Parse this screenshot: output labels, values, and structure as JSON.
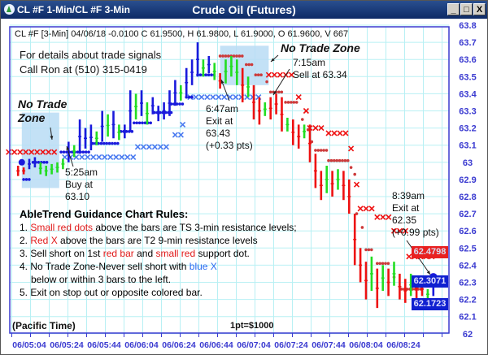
{
  "window": {
    "app_title": "CL #F 1-Min/CL #F 3-Min",
    "title": "Crude Oil (Futures)",
    "buttons": [
      "_",
      "□",
      "X"
    ]
  },
  "header": "CL #F [3-Min] 04/06/18  -0.0100 C 61.9500, H 61.9800, L 61.9000, O 61.9600, V 667",
  "contact": [
    "For details about trade signals",
    "Call Ron at (510) 315-0419"
  ],
  "annotations": {
    "nz_left": [
      "No Trade",
      "Zone"
    ],
    "buy": [
      "5:25am",
      "Buy at",
      "63.10"
    ],
    "exit1": [
      "6:47am",
      "Exit at",
      "63.43",
      "(+0.33 pts)"
    ],
    "nz_top": "No Trade Zone",
    "sell": [
      "7:15am",
      "Sell at 63.34"
    ],
    "exit2": [
      "8:39am",
      "Exit at",
      "62.35",
      "(+0.99 pts)"
    ]
  },
  "rules": {
    "title": "AbleTrend Guidance Chart Rules:",
    "r1": {
      "a": "1. ",
      "b": "Small red dots",
      "c": " above the bars are TS 3-min resistance levels;"
    },
    "r2": {
      "a": "2. ",
      "b": "Red X",
      "c": " above the bars are T2 9-min resistance levels"
    },
    "r3": {
      "a": "3. Sell short on 1st ",
      "b": "red bar",
      "c": " and ",
      "d": "small red",
      "e": " support dot."
    },
    "r4": {
      "a": "4. No Trade Zone-Never sell short with ",
      "b": "blue X"
    },
    "r4b": "below or within 3 bars to the left.",
    "r5": "5. Exit on stop out or opposite colored bar."
  },
  "footer": {
    "timezone": "(Pacific Time)",
    "point_value": "1pt=$1000"
  },
  "price_labels": [
    {
      "text": "62.4798",
      "value": 62.4798,
      "bg": "#e82020",
      "fg": "#d8dcf0"
    },
    {
      "text": "62.3071",
      "value": 62.3071,
      "bg": "#1020d0",
      "fg": "#e0e0ff"
    },
    {
      "text": "62.1723",
      "value": 62.1723,
      "bg": "#1020d0",
      "fg": "#e0e0ff"
    }
  ],
  "colors": {
    "up": "#1a1adc",
    "down": "#ee1111",
    "neutral": "#22dd22",
    "grid": "#b8f0f4",
    "axis": "#3a3ad0",
    "zone": "#b8dcf4",
    "resist_dot": "#cc3a3a",
    "support_x": "#4a7af0"
  },
  "chart_data": {
    "type": "bar",
    "title": "Crude Oil (Futures)",
    "y_ticks": [
      "63.8",
      "63.7",
      "63.6",
      "63.5",
      "63.4",
      "63.3",
      "63.2",
      "63.1",
      "63",
      "62.9",
      "62.8",
      "62.7",
      "62.6",
      "62.5",
      "62.4",
      "62.3",
      "62.2",
      "62.1",
      "62"
    ],
    "ylim": [
      62.0,
      63.8
    ],
    "x_ticks": [
      "06/05:04",
      "06/05:24",
      "06/05:44",
      "06/06:04",
      "06/06:24",
      "06/06:44",
      "06/07:04",
      "06/07:24",
      "06/07:44",
      "06/08:04",
      "06/08:24"
    ],
    "grid": true,
    "bar_start": "04:58",
    "bar_interval_min": 3,
    "bars": [
      [
        62.98,
        62.92,
        "r"
      ],
      [
        62.97,
        62.93,
        "r"
      ],
      [
        63.02,
        62.96,
        "b"
      ],
      [
        63.03,
        62.97,
        "b"
      ],
      [
        63.0,
        62.93,
        "g"
      ],
      [
        62.98,
        62.92,
        "g"
      ],
      [
        62.99,
        62.93,
        "g"
      ],
      [
        63.0,
        62.94,
        "g"
      ],
      [
        63.02,
        62.96,
        "g"
      ],
      [
        63.12,
        63.0,
        "b"
      ],
      [
        63.1,
        63.03,
        "g"
      ],
      [
        63.25,
        63.05,
        "b"
      ],
      [
        63.2,
        63.08,
        "b"
      ],
      [
        63.22,
        63.07,
        "b"
      ],
      [
        63.18,
        63.1,
        "g"
      ],
      [
        63.3,
        63.12,
        "b"
      ],
      [
        63.28,
        63.15,
        "g"
      ],
      [
        63.3,
        63.14,
        "b"
      ],
      [
        63.22,
        63.13,
        "g"
      ],
      [
        63.22,
        63.14,
        "b"
      ],
      [
        63.42,
        63.18,
        "b"
      ],
      [
        63.4,
        63.25,
        "g"
      ],
      [
        63.42,
        63.27,
        "b"
      ],
      [
        63.35,
        63.22,
        "g"
      ],
      [
        63.38,
        63.28,
        "b"
      ],
      [
        63.33,
        63.24,
        "b"
      ],
      [
        63.35,
        63.25,
        "b"
      ],
      [
        63.42,
        63.27,
        "b"
      ],
      [
        63.48,
        63.33,
        "b"
      ],
      [
        63.45,
        63.36,
        "g"
      ],
      [
        63.55,
        63.38,
        "b"
      ],
      [
        63.6,
        63.45,
        "b"
      ],
      [
        63.7,
        63.5,
        "b"
      ],
      [
        63.6,
        63.5,
        "g"
      ],
      [
        63.62,
        63.52,
        "b"
      ],
      [
        63.58,
        63.48,
        "g"
      ],
      [
        63.52,
        63.43,
        "r"
      ],
      [
        63.6,
        63.46,
        "g"
      ],
      [
        63.62,
        63.5,
        "g"
      ],
      [
        63.6,
        63.45,
        "g"
      ],
      [
        63.55,
        63.35,
        "r"
      ],
      [
        63.5,
        63.38,
        "g"
      ],
      [
        63.45,
        63.25,
        "r"
      ],
      [
        63.38,
        63.22,
        "r"
      ],
      [
        63.35,
        63.27,
        "g"
      ],
      [
        63.38,
        63.25,
        "r"
      ],
      [
        63.4,
        63.28,
        "r"
      ],
      [
        63.38,
        63.18,
        "r"
      ],
      [
        63.26,
        63.18,
        "g"
      ],
      [
        63.25,
        63.1,
        "r"
      ],
      [
        63.22,
        63.08,
        "r"
      ],
      [
        63.22,
        63.14,
        "g"
      ],
      [
        63.22,
        63.0,
        "r"
      ],
      [
        63.05,
        62.85,
        "r"
      ],
      [
        62.95,
        62.78,
        "r"
      ],
      [
        62.98,
        62.82,
        "g"
      ],
      [
        62.95,
        62.8,
        "r"
      ],
      [
        62.96,
        62.84,
        "g"
      ],
      [
        62.95,
        62.78,
        "r"
      ],
      [
        62.9,
        62.7,
        "r"
      ],
      [
        62.7,
        62.4,
        "r"
      ],
      [
        62.5,
        62.3,
        "r"
      ],
      [
        62.42,
        62.2,
        "r"
      ],
      [
        62.45,
        62.25,
        "g"
      ],
      [
        62.38,
        62.15,
        "r"
      ],
      [
        62.4,
        62.25,
        "g"
      ],
      [
        62.38,
        62.22,
        "r"
      ],
      [
        62.42,
        62.28,
        "g"
      ],
      [
        62.35,
        62.2,
        "r"
      ],
      [
        62.32,
        62.18,
        "r"
      ],
      [
        62.35,
        62.22,
        "g"
      ],
      [
        62.33,
        62.2,
        "r"
      ],
      [
        62.3,
        62.22,
        "r"
      ],
      [
        62.26,
        62.2,
        "g"
      ],
      [
        62.35,
        62.22,
        "b"
      ]
    ],
    "support_x_blue": [
      [
        "05:23",
        "06:01",
        63.03
      ],
      [
        "06:02",
        "06:20",
        63.09
      ],
      [
        "06:22",
        "06:25",
        63.16
      ],
      [
        "06:26",
        "06:29",
        63.22
      ],
      [
        "06:30",
        "07:07",
        63.38
      ]
    ],
    "resistance_x_red": [
      [
        "04:53",
        "05:19",
        63.06
      ],
      [
        "07:12",
        "07:25",
        63.51
      ],
      [
        "07:28",
        "07:28",
        63.38
      ],
      [
        "07:32",
        "07:32",
        63.3
      ],
      [
        "07:34",
        "07:42",
        63.2
      ],
      [
        "07:44",
        "07:55",
        63.17
      ],
      [
        "07:56",
        "07:56",
        63.08
      ],
      [
        "07:59",
        "07:59",
        62.87
      ],
      [
        "08:01",
        "08:10",
        62.73
      ],
      [
        "08:10",
        "08:19",
        62.68
      ],
      [
        "08:19",
        "08:28",
        62.6
      ],
      [
        "08:27",
        "08:40",
        62.45
      ]
    ],
    "resistance_dots_red": [
      [
        "06:46",
        "06:59",
        63.62
      ],
      [
        "07:00",
        "07:03",
        63.57
      ],
      [
        "07:05",
        "07:09",
        63.51
      ],
      [
        "07:11",
        "07:11",
        63.47
      ],
      [
        "07:13",
        "07:20",
        63.41
      ],
      [
        "07:21",
        "07:27",
        63.35
      ],
      [
        "07:30",
        "07:30",
        63.25
      ],
      [
        "07:33",
        "07:33",
        63.19
      ],
      [
        "07:35",
        "07:35",
        63.12
      ],
      [
        "07:37",
        "07:43",
        63.07
      ],
      [
        "07:44",
        "07:55",
        63.01
      ],
      [
        "07:56",
        "07:56",
        62.97
      ],
      [
        "07:58",
        "07:58",
        62.93
      ],
      [
        "07:59",
        "07:59",
        62.7
      ],
      [
        "08:02",
        "08:02",
        62.62
      ],
      [
        "08:04",
        "08:08",
        62.49
      ],
      [
        "08:10",
        "08:17",
        62.41
      ],
      [
        "08:19",
        "08:19",
        62.33
      ],
      [
        "08:23",
        "08:34",
        62.26
      ]
    ],
    "support_dots_blue": [
      [
        "05:06",
        "05:14",
        63.0
      ],
      [
        "05:01",
        "05:05",
        62.9
      ],
      [
        "05:21",
        "05:37",
        63.06
      ],
      [
        "05:38",
        "05:52",
        63.11
      ],
      [
        "05:53",
        "05:59",
        63.18
      ],
      [
        "06:00",
        "06:09",
        63.23
      ],
      [
        "06:11",
        "06:20",
        63.29
      ],
      [
        "06:20",
        "06:27",
        63.34
      ],
      [
        "06:28",
        "06:31",
        63.38
      ],
      [
        "06:34",
        "06:43",
        63.51
      ],
      [
        "08:35",
        "08:39",
        62.17
      ]
    ],
    "no_trade_zones": [
      {
        "start": "05:00",
        "end": "05:20",
        "low": 62.85,
        "high": 63.29
      },
      {
        "start": "06:46",
        "end": "07:12",
        "low": 63.45,
        "high": 63.68
      }
    ],
    "signals": [
      {
        "time": "05:25",
        "price": 63.1,
        "type": "buy"
      },
      {
        "time": "06:47",
        "price": 63.43,
        "type": "exit"
      },
      {
        "time": "07:15",
        "price": 63.34,
        "type": "sell"
      },
      {
        "time": "08:39",
        "price": 62.35,
        "type": "exit"
      }
    ]
  }
}
